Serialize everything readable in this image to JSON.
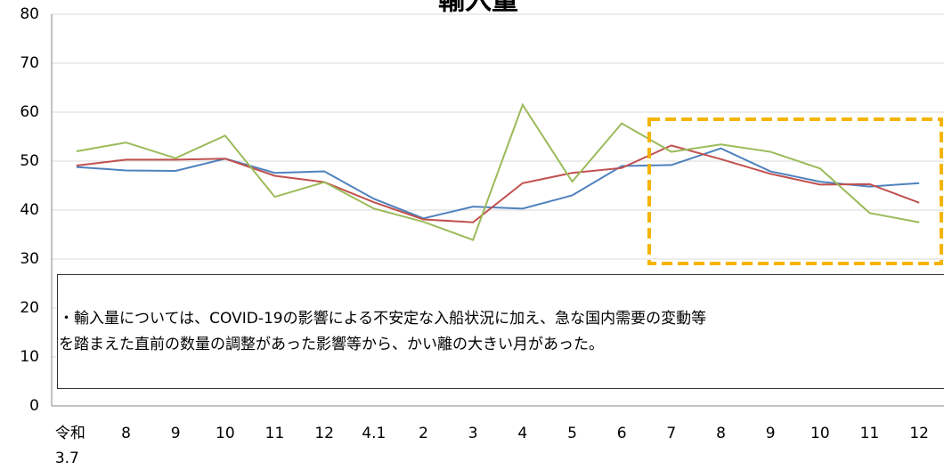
{
  "chart_data": {
    "type": "line",
    "title": "輸入量",
    "categories": [
      "令和\n3.7",
      "8",
      "9",
      "10",
      "11",
      "12",
      "4.1",
      "2",
      "3",
      "4",
      "5",
      "6",
      "7",
      "8",
      "9",
      "10",
      "11",
      "12"
    ],
    "series": [
      {
        "color": "#4f81bd",
        "values": [
          48.8,
          48.1,
          48.0,
          50.5,
          47.6,
          47.9,
          42.3,
          38.3,
          40.7,
          40.3,
          43.0,
          49.0,
          49.2,
          52.6,
          47.9,
          45.8,
          44.8,
          45.5
        ]
      },
      {
        "color": "#c0504d",
        "values": [
          49.1,
          50.3,
          50.3,
          50.5,
          47.0,
          45.7,
          41.6,
          38.1,
          37.5,
          45.5,
          47.6,
          48.6,
          53.2,
          50.4,
          47.4,
          45.2,
          45.3,
          41.5
        ]
      },
      {
        "color": "#9bbb59",
        "values": [
          52.0,
          53.8,
          50.6,
          55.2,
          42.7,
          45.7,
          40.3,
          37.6,
          33.9,
          61.5,
          45.8,
          57.7,
          51.9,
          53.4,
          51.9,
          48.5,
          39.4,
          37.5
        ]
      }
    ],
    "ylim": [
      0,
      80
    ],
    "yticks": [
      0,
      10,
      20,
      30,
      40,
      50,
      60,
      70,
      80
    ],
    "grid": true,
    "annotation": [
      "・輸入量については、COVID-19の影響による不安定な入船状況に加え、急な国内需要の変動等",
      "を踏まえた直前の数量の調整があった影響等から、かい離の大きい月があった。"
    ]
  }
}
